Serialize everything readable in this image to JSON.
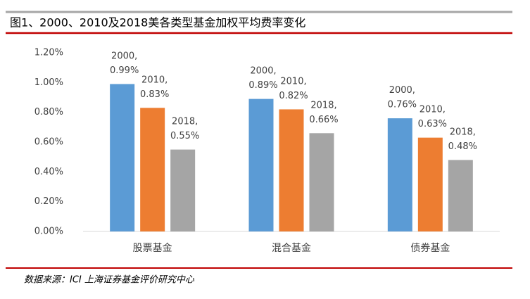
{
  "chart_data": {
    "type": "bar",
    "title": "图1、2000、2010及2018美各类型基金加权平均费率变化",
    "source": "数据来源：ICI 上海证券基金评价研究中心",
    "categories": [
      "股票基金",
      "混合基金",
      "债券基金"
    ],
    "data_label_separator": ",",
    "series": [
      {
        "name": "2000",
        "color": "#5b9bd5",
        "values": [
          0.99,
          0.89,
          0.76
        ],
        "value_labels": [
          "0.99%",
          "0.89%",
          "0.76%"
        ]
      },
      {
        "name": "2010",
        "color": "#ed7d31",
        "values": [
          0.83,
          0.82,
          0.63
        ],
        "value_labels": [
          "0.83%",
          "0.82%",
          "0.63%"
        ]
      },
      {
        "name": "2018",
        "color": "#a5a5a5",
        "values": [
          0.55,
          0.66,
          0.48
        ],
        "value_labels": [
          "0.55%",
          "0.66%",
          "0.48%"
        ]
      }
    ],
    "ylim": [
      0,
      1.2
    ],
    "yticks": [
      {
        "value": 0,
        "label": "0.00%"
      },
      {
        "value": 0.2,
        "label": "0.20%"
      },
      {
        "value": 0.4,
        "label": "0.40%"
      },
      {
        "value": 0.6,
        "label": "0.60%"
      },
      {
        "value": 0.8,
        "label": "0.80%"
      },
      {
        "value": 1.0,
        "label": "1.00%"
      },
      {
        "value": 1.2,
        "label": "1.20%"
      }
    ],
    "grid": false
  }
}
